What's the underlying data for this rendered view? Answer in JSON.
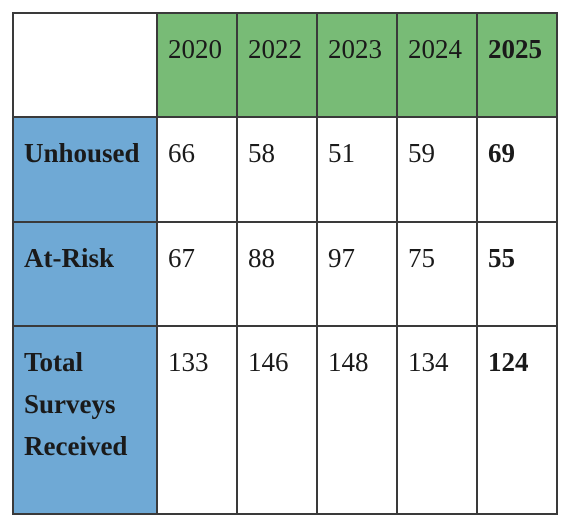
{
  "table": {
    "years": [
      "2020",
      "2022",
      "2023",
      "2024",
      "2025"
    ],
    "rows": [
      {
        "label": "Unhoused",
        "values": [
          "66",
          "58",
          "51",
          "59",
          "69"
        ]
      },
      {
        "label": "At-Risk",
        "values": [
          "67",
          "88",
          "97",
          "75",
          "55"
        ]
      },
      {
        "label": "Total Surveys Received",
        "values": [
          "133",
          "146",
          "148",
          "134",
          "124"
        ]
      }
    ]
  },
  "colors": {
    "header_green": "#78bb76",
    "label_blue": "#6fa9d5",
    "border": "#3a3a3a"
  }
}
